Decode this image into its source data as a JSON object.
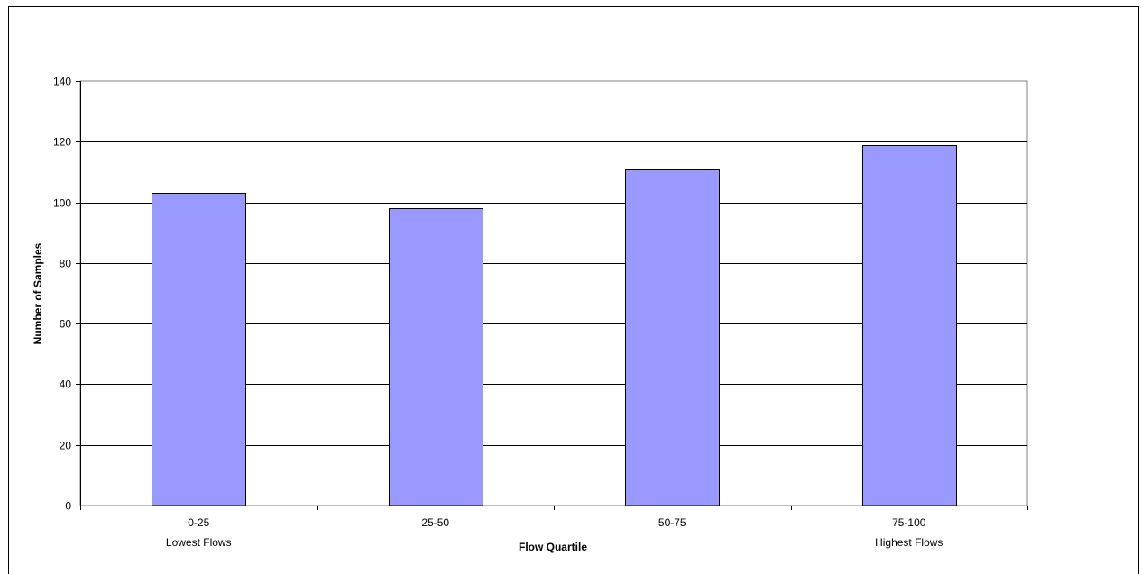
{
  "chart_data": {
    "type": "bar",
    "title": "",
    "xlabel": "Flow Quartile",
    "ylabel": "Number of Samples",
    "categories": [
      "0-25",
      "25-50",
      "50-75",
      "75-100"
    ],
    "category_sublabels": [
      "Lowest Flows",
      "",
      "",
      "Highest Flows"
    ],
    "values": [
      103,
      98,
      111,
      119
    ],
    "ylim": [
      0,
      140
    ],
    "yticks": [
      0,
      20,
      40,
      60,
      80,
      100,
      120,
      140
    ],
    "grid": true,
    "legend": "none",
    "colors": {
      "bar_fill": "#9999ff",
      "bar_stroke": "#000000",
      "grid": "#000000",
      "plot_border": "#808080",
      "background": "#ffffff"
    }
  }
}
